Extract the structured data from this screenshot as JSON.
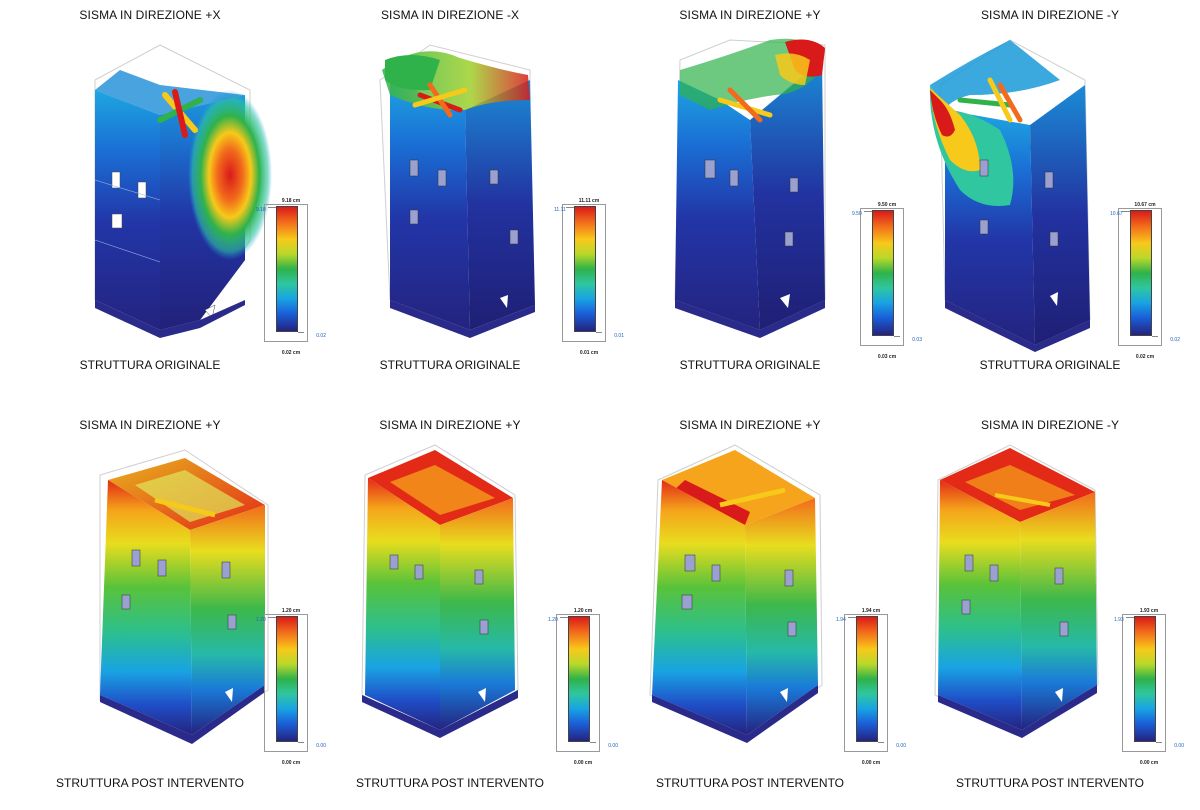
{
  "panels": [
    {
      "title": "SISMA IN DIREZIONE +X",
      "caption": "STRUTTURA ORIGINALE",
      "legend": {
        "top": "9.18 cm",
        "max": "9.18",
        "min": "0.02",
        "bottom": "0.02 cm"
      }
    },
    {
      "title": "SISMA IN DIREZIONE -X",
      "caption": "STRUTTURA ORIGINALE",
      "legend": {
        "top": "11.11 cm",
        "max": "11.11",
        "min": "0.01",
        "bottom": "0.01 cm"
      }
    },
    {
      "title": "SISMA IN DIREZIONE +Y",
      "caption": "STRUTTURA ORIGINALE",
      "legend": {
        "top": "9.50 cm",
        "max": "9.50",
        "min": "0.03",
        "bottom": "0.03 cm"
      }
    },
    {
      "title": "SISMA IN DIREZIONE -Y",
      "caption": "STRUTTURA ORIGINALE",
      "legend": {
        "top": "10.67 cm",
        "max": "10.67",
        "min": "0.02",
        "bottom": "0.02 cm"
      }
    },
    {
      "title": "SISMA IN DIREZIONE +Y",
      "caption": "STRUTTURA POST INTERVENTO",
      "legend": {
        "top": "1.20 cm",
        "max": "1.20",
        "min": "0.00",
        "bottom": "0.00 cm"
      }
    },
    {
      "title": "SISMA IN DIREZIONE +Y",
      "caption": "STRUTTURA POST INTERVENTO",
      "legend": {
        "top": "1.20 cm",
        "max": "1.20",
        "min": "0.00",
        "bottom": "0.00 cm"
      }
    },
    {
      "title": "SISMA IN DIREZIONE +Y",
      "caption": "STRUTTURA POST INTERVENTO",
      "legend": {
        "top": "1.94 cm",
        "max": "1.94",
        "min": "0.00",
        "bottom": "0.00 cm"
      }
    },
    {
      "title": "SISMA IN DIREZIONE -Y",
      "caption": "STRUTTURA POST INTERVENTO",
      "legend": {
        "top": "1.93 cm",
        "max": "1.93",
        "min": "0.00",
        "bottom": "0.00 cm"
      }
    }
  ],
  "colors": {
    "scale_max": "#d91a1a",
    "scale_high": "#f7c91a",
    "scale_mid": "#2fb24a",
    "scale_low": "#19a3e3",
    "scale_min": "#24237f"
  }
}
